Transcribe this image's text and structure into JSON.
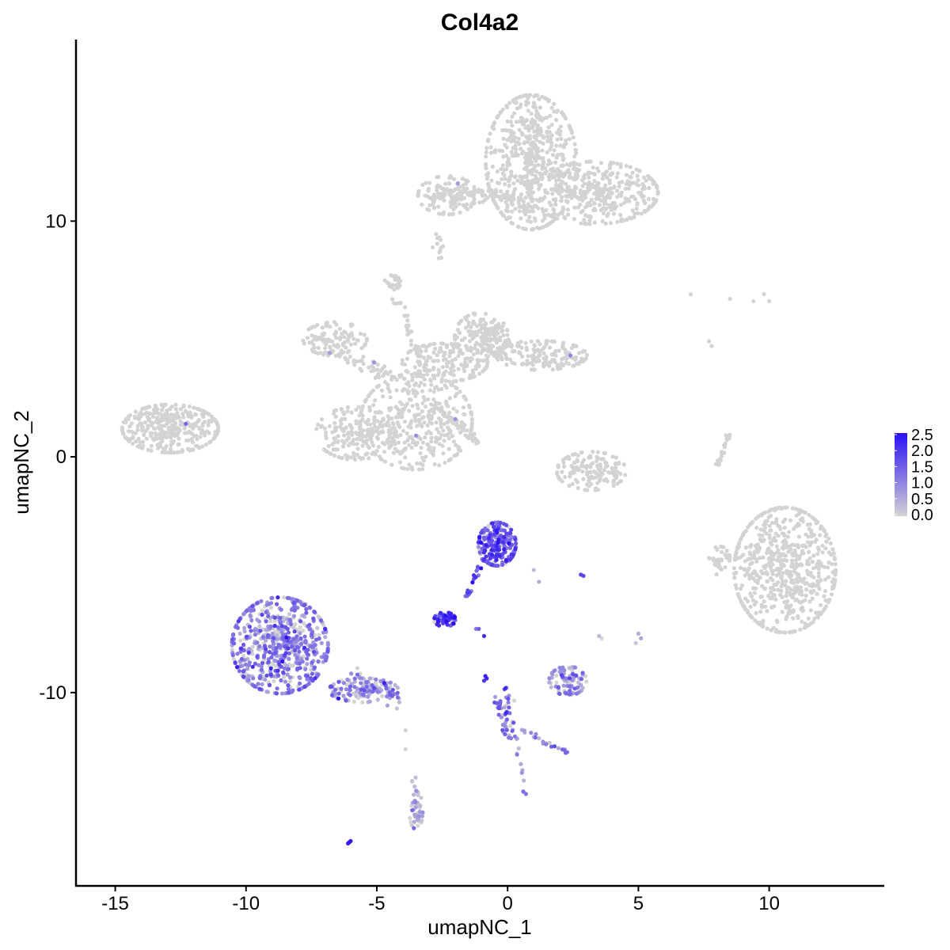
{
  "chart_data": {
    "type": "scatter",
    "title": "Col4a2",
    "xlabel": "umapNC_1",
    "ylabel": "umapNC_2",
    "xlim": [
      -16.5,
      14.4
    ],
    "ylim": [
      -18.2,
      17.7
    ],
    "x_ticks": [
      -15,
      -10,
      -5,
      0,
      5,
      10
    ],
    "y_ticks": [
      -10,
      0,
      10
    ],
    "x_tick_labels": [
      "-15",
      "-10",
      "-5",
      "0",
      "5",
      "10"
    ],
    "y_tick_labels": [
      "-10",
      "0",
      "10"
    ],
    "color_low": "#d3d3d3",
    "color_high": "#2a0ff5",
    "legend": {
      "placement": "right",
      "min": 0.0,
      "max": 2.5,
      "labels": [
        "2.5",
        "2.0",
        "1.5",
        "1.0",
        "0.5",
        "0.0"
      ]
    },
    "clusters": [
      {
        "cx": 0.9,
        "cy": 12.5,
        "rx": 1.7,
        "ry": 2.8,
        "n": 520,
        "expr": 0.0,
        "var": 0.0
      },
      {
        "cx": 3.3,
        "cy": 11.2,
        "rx": 2.4,
        "ry": 1.3,
        "n": 380,
        "expr": 0.0,
        "var": 0.0
      },
      {
        "cx": -2.3,
        "cy": 11.1,
        "rx": 1.1,
        "ry": 0.8,
        "n": 110,
        "expr": 0.0,
        "var": 0.0
      },
      {
        "cx": -1.0,
        "cy": 11.0,
        "rx": 1.9,
        "ry": 0.3,
        "n": 50,
        "expr": 0.0,
        "var": 0.0
      },
      {
        "cx": -12.9,
        "cy": 1.2,
        "rx": 1.8,
        "ry": 1.0,
        "n": 360,
        "expr": 0.0,
        "var": 0.0
      },
      {
        "cx": -3.5,
        "cy": 1.5,
        "rx": 2.1,
        "ry": 2.0,
        "n": 380,
        "expr": 0.0,
        "var": 0.0
      },
      {
        "cx": -5.8,
        "cy": 1.0,
        "rx": 1.5,
        "ry": 1.1,
        "n": 170,
        "expr": 0.0,
        "var": 0.0
      },
      {
        "cx": -2.4,
        "cy": 4.0,
        "rx": 1.6,
        "ry": 0.8,
        "n": 150,
        "expr": 0.0,
        "var": 0.0
      },
      {
        "cx": -1.0,
        "cy": 5.1,
        "rx": 1.0,
        "ry": 1.0,
        "n": 150,
        "expr": 0.0,
        "var": 0.0
      },
      {
        "cx": 1.3,
        "cy": 4.3,
        "rx": 1.7,
        "ry": 0.6,
        "n": 160,
        "expr": 0.0,
        "var": 0.0
      },
      {
        "cx": -6.6,
        "cy": 5.0,
        "rx": 1.2,
        "ry": 0.7,
        "n": 110,
        "expr": 0.0,
        "var": 0.0
      },
      {
        "cx": -4.4,
        "cy": 7.4,
        "rx": 0.3,
        "ry": 0.3,
        "n": 25,
        "expr": 0.0,
        "var": 0.0
      },
      {
        "cx": 10.6,
        "cy": -4.8,
        "rx": 1.9,
        "ry": 2.6,
        "n": 640,
        "expr": 0.0,
        "var": 0.0
      },
      {
        "cx": 8.1,
        "cy": -4.4,
        "rx": 0.4,
        "ry": 0.6,
        "n": 35,
        "expr": 0.0,
        "var": 0.0
      },
      {
        "cx": 3.2,
        "cy": -0.6,
        "rx": 1.3,
        "ry": 0.8,
        "n": 150,
        "expr": 0.0,
        "var": 0.0
      },
      {
        "cx": -8.7,
        "cy": -8.0,
        "rx": 1.8,
        "ry": 2.0,
        "n": 650,
        "expr": 1.0,
        "var": 0.5
      },
      {
        "cx": -5.5,
        "cy": -9.9,
        "rx": 1.3,
        "ry": 0.5,
        "n": 130,
        "expr": 0.8,
        "var": 0.5
      },
      {
        "cx": -0.4,
        "cy": -3.7,
        "rx": 0.7,
        "ry": 0.9,
        "n": 230,
        "expr": 1.5,
        "var": 0.5
      },
      {
        "cx": -2.4,
        "cy": -6.9,
        "rx": 0.4,
        "ry": 0.3,
        "n": 55,
        "expr": 2.0,
        "var": 0.4
      },
      {
        "cx": 2.3,
        "cy": -9.5,
        "rx": 0.7,
        "ry": 0.6,
        "n": 90,
        "expr": 0.9,
        "var": 0.4
      },
      {
        "cx": -3.5,
        "cy": -15.0,
        "rx": 0.25,
        "ry": 0.8,
        "n": 35,
        "expr": 0.7,
        "var": 0.4
      },
      {
        "cx": 0.0,
        "cy": -10.8,
        "rx": 0.3,
        "ry": 1.0,
        "n": 35,
        "expr": 1.2,
        "var": 0.5
      }
    ],
    "paths": [
      {
        "x1": 1.0,
        "y1": 15.0,
        "x2": 1.0,
        "y2": 11.4,
        "n": 50,
        "spread": 0.35,
        "expr": 0.0,
        "var": 0.0
      },
      {
        "x1": -1.9,
        "y1": 11.4,
        "x2": 0.5,
        "y2": 11.0,
        "n": 40,
        "spread": 0.15,
        "expr": 0.0,
        "var": 0.0
      },
      {
        "x1": -2.7,
        "y1": 9.4,
        "x2": -2.7,
        "y2": 8.5,
        "n": 12,
        "spread": 0.15,
        "expr": 0.0,
        "var": 0.0
      },
      {
        "x1": -4.3,
        "y1": 6.8,
        "x2": -2.8,
        "y2": 2.8,
        "n": 45,
        "spread": 0.15,
        "expr": 0.0,
        "var": 0.0
      },
      {
        "x1": -2.6,
        "y1": 2.0,
        "x2": -1.1,
        "y2": 0.6,
        "n": 45,
        "spread": 0.12,
        "expr": 0.0,
        "var": 0.0
      },
      {
        "x1": -6.6,
        "y1": 4.5,
        "x2": -4.3,
        "y2": 3.2,
        "n": 50,
        "spread": 0.3,
        "expr": 0.0,
        "var": 0.0
      },
      {
        "x1": -1.2,
        "y1": 5.2,
        "x2": 0.4,
        "y2": 4.7,
        "n": 30,
        "spread": 0.3,
        "expr": 0.0,
        "var": 0.0
      },
      {
        "x1": 8.0,
        "y1": -0.4,
        "x2": 8.5,
        "y2": 1.0,
        "n": 25,
        "spread": 0.08,
        "expr": 0.0,
        "var": 0.0
      },
      {
        "x1": -0.9,
        "y1": -4.3,
        "x2": -1.6,
        "y2": -6.1,
        "n": 20,
        "spread": 0.12,
        "expr": 1.6,
        "var": 0.4
      },
      {
        "x1": -6.0,
        "y1": -9.2,
        "x2": -4.1,
        "y2": -10.4,
        "n": 30,
        "spread": 0.25,
        "expr": 0.8,
        "var": 0.5
      },
      {
        "x1": -0.5,
        "y1": -10.2,
        "x2": 0.1,
        "y2": -12.0,
        "n": 18,
        "spread": 0.1,
        "expr": 1.1,
        "var": 0.5
      },
      {
        "x1": 0.5,
        "y1": -11.6,
        "x2": 2.4,
        "y2": -12.6,
        "n": 22,
        "spread": 0.1,
        "expr": 0.8,
        "var": 0.5
      },
      {
        "x1": 0.3,
        "y1": -11.8,
        "x2": 0.6,
        "y2": -13.8,
        "n": 10,
        "spread": 0.1,
        "expr": 0.8,
        "var": 0.5
      },
      {
        "x1": -3.6,
        "y1": -13.6,
        "x2": -3.4,
        "y2": -15.5,
        "n": 15,
        "spread": 0.12,
        "expr": 0.3,
        "var": 0.3
      }
    ],
    "isolated_points": [
      {
        "x": 7.0,
        "y": 6.9,
        "expr": 0.0
      },
      {
        "x": 8.5,
        "y": 6.7,
        "expr": 0.0
      },
      {
        "x": 9.4,
        "y": 6.6,
        "expr": 0.0
      },
      {
        "x": 9.8,
        "y": 6.9,
        "expr": 0.0
      },
      {
        "x": 10.0,
        "y": 6.6,
        "expr": 0.0
      },
      {
        "x": 7.7,
        "y": 4.9,
        "expr": 0.0
      },
      {
        "x": 7.8,
        "y": 4.7,
        "expr": 0.0
      },
      {
        "x": -3.9,
        "y": -11.6,
        "expr": 0.0
      },
      {
        "x": -3.9,
        "y": -12.4,
        "expr": 0.0
      },
      {
        "x": -6.0,
        "y": -16.3,
        "expr": 2.3
      },
      {
        "x": -6.1,
        "y": -16.4,
        "expr": 2.2
      },
      {
        "x": -6.05,
        "y": -16.35,
        "expr": 2.4
      },
      {
        "x": 0.7,
        "y": -14.3,
        "expr": 1.2
      },
      {
        "x": 0.6,
        "y": -14.2,
        "expr": 1.3
      },
      {
        "x": 2.8,
        "y": -5.0,
        "expr": 1.8
      },
      {
        "x": 2.9,
        "y": -5.05,
        "expr": 1.7
      },
      {
        "x": 5.0,
        "y": -7.5,
        "expr": 0.5
      },
      {
        "x": 5.1,
        "y": -7.7,
        "expr": 0.6
      },
      {
        "x": 4.9,
        "y": -7.9,
        "expr": 0.2
      },
      {
        "x": 3.5,
        "y": -7.6,
        "expr": 0.3
      },
      {
        "x": 3.6,
        "y": -7.7,
        "expr": 0.0
      },
      {
        "x": -0.8,
        "y": -9.4,
        "expr": 2.2
      },
      {
        "x": -0.85,
        "y": -9.3,
        "expr": 2.3
      },
      {
        "x": -0.9,
        "y": -9.5,
        "expr": 2.0
      },
      {
        "x": -0.9,
        "y": -7.6,
        "expr": 2.1
      },
      {
        "x": -1.1,
        "y": -7.3,
        "expr": 1.5
      },
      {
        "x": -1.2,
        "y": -7.3,
        "expr": 1.2
      },
      {
        "x": 1.0,
        "y": -4.8,
        "expr": 0.3
      },
      {
        "x": 1.2,
        "y": -5.3,
        "expr": 0.5
      },
      {
        "x": -12.3,
        "y": 1.4,
        "expr": 1.4
      },
      {
        "x": 2.4,
        "y": 4.3,
        "expr": 1.0
      },
      {
        "x": -2.0,
        "y": 1.6,
        "expr": 0.8
      },
      {
        "x": -3.5,
        "y": 0.9,
        "expr": 0.9
      },
      {
        "x": -5.1,
        "y": 4.0,
        "expr": 0.8
      },
      {
        "x": -6.8,
        "y": 4.4,
        "expr": 0.7
      },
      {
        "x": -1.9,
        "y": 11.6,
        "expr": 0.7
      }
    ]
  }
}
